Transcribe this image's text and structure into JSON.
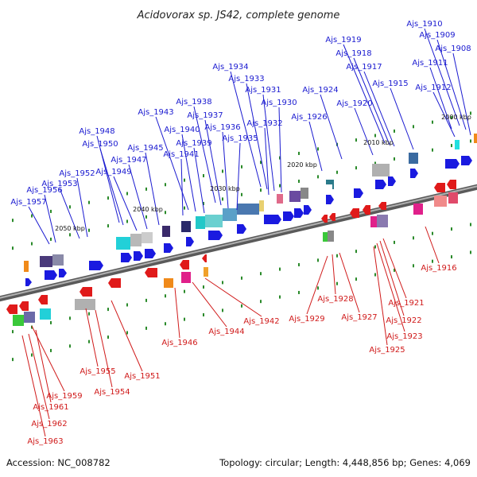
{
  "title": "Acidovorax sp. JS42, complete genome",
  "footer": {
    "accession": "Accession: NC_008782",
    "summary": "Topology: circular; Length: 4,448,856 bp; Genes: 4,069"
  },
  "colors": {
    "top_label": "#1a1ad0",
    "bottom_label": "#d01a1a",
    "backbone": "#888888",
    "tick": "#2a8a2a"
  },
  "scale_marks": [
    "2000 kbp",
    "2010 kbp",
    "2020 kbp",
    "2030 kbp",
    "2040 kbp",
    "2050 kbp"
  ],
  "top_labels": [
    "Ajs_1910",
    "Ajs_1909",
    "Ajs_1908",
    "Ajs_1911",
    "Ajs_1912",
    "Ajs_1919",
    "Ajs_1918",
    "Ajs_1917",
    "Ajs_1915",
    "Ajs_1920",
    "Ajs_1924",
    "Ajs_1926",
    "Ajs_1934",
    "Ajs_1933",
    "Ajs_1931",
    "Ajs_1930",
    "Ajs_1932",
    "Ajs_1938",
    "Ajs_1937",
    "Ajs_1936",
    "Ajs_1935",
    "Ajs_1943",
    "Ajs_1940",
    "Ajs_1939",
    "Ajs_1941",
    "Ajs_1948",
    "Ajs_1950",
    "Ajs_1945",
    "Ajs_1947",
    "Ajs_1949",
    "Ajs_1953",
    "Ajs_1952",
    "Ajs_1956",
    "Ajs_1957"
  ],
  "bottom_labels": [
    "Ajs_1916",
    "Ajs_1921",
    "Ajs_1922",
    "Ajs_1923",
    "Ajs_1925",
    "Ajs_1927",
    "Ajs_1928",
    "Ajs_1929",
    "Ajs_1942",
    "Ajs_1944",
    "Ajs_1946",
    "Ajs_1951",
    "Ajs_1955",
    "Ajs_1954",
    "Ajs_1959",
    "Ajs_1961",
    "Ajs_1962",
    "Ajs_1963"
  ]
}
